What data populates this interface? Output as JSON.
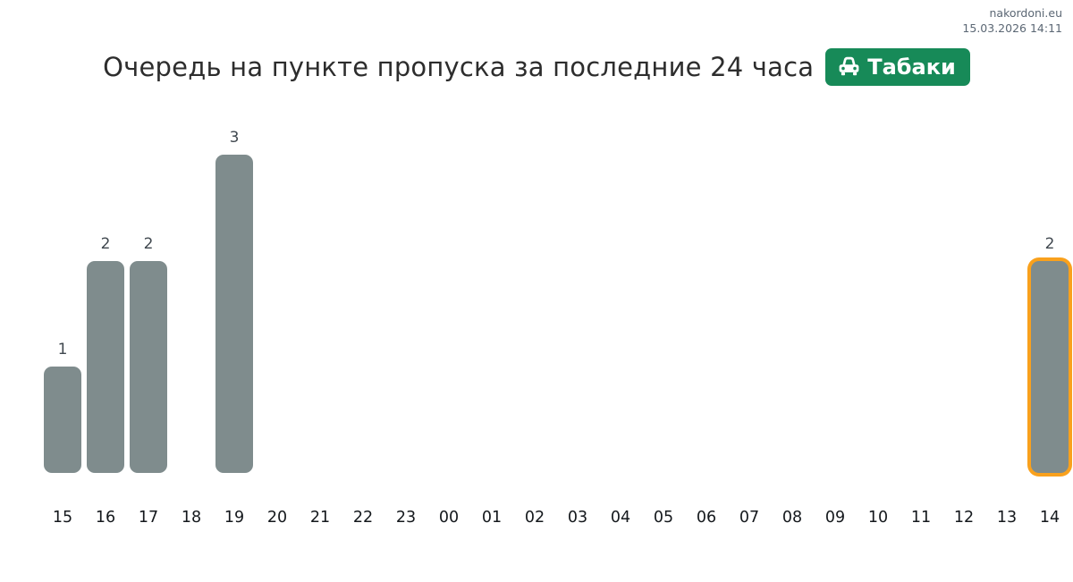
{
  "meta": {
    "site": "nakordoni.eu",
    "datetime": "15.03.2026 14:11"
  },
  "header": {
    "title": "Очередь на пункте пропуска за последние 24 часа",
    "badge": {
      "label": "Табаки",
      "icon": "car-front-icon",
      "bg_color": "#178a58"
    }
  },
  "chart_data": {
    "type": "bar",
    "title": "Очередь на пункте пропуска за последние 24 часа",
    "xlabel": "",
    "ylabel": "",
    "categories": [
      "15",
      "16",
      "17",
      "18",
      "19",
      "20",
      "21",
      "22",
      "23",
      "00",
      "01",
      "02",
      "03",
      "04",
      "05",
      "06",
      "07",
      "08",
      "09",
      "10",
      "11",
      "12",
      "13",
      "14"
    ],
    "values": [
      1,
      2,
      2,
      0,
      3,
      0,
      0,
      0,
      0,
      0,
      0,
      0,
      0,
      0,
      0,
      0,
      0,
      0,
      0,
      0,
      0,
      0,
      0,
      2
    ],
    "highlighted_category": "14",
    "bar_color": "#7f8c8d",
    "highlight_outline_color": "#f9a11d",
    "value_labels_shown": true,
    "ylim": [
      0,
      3
    ],
    "grid": false,
    "legend": false
  }
}
